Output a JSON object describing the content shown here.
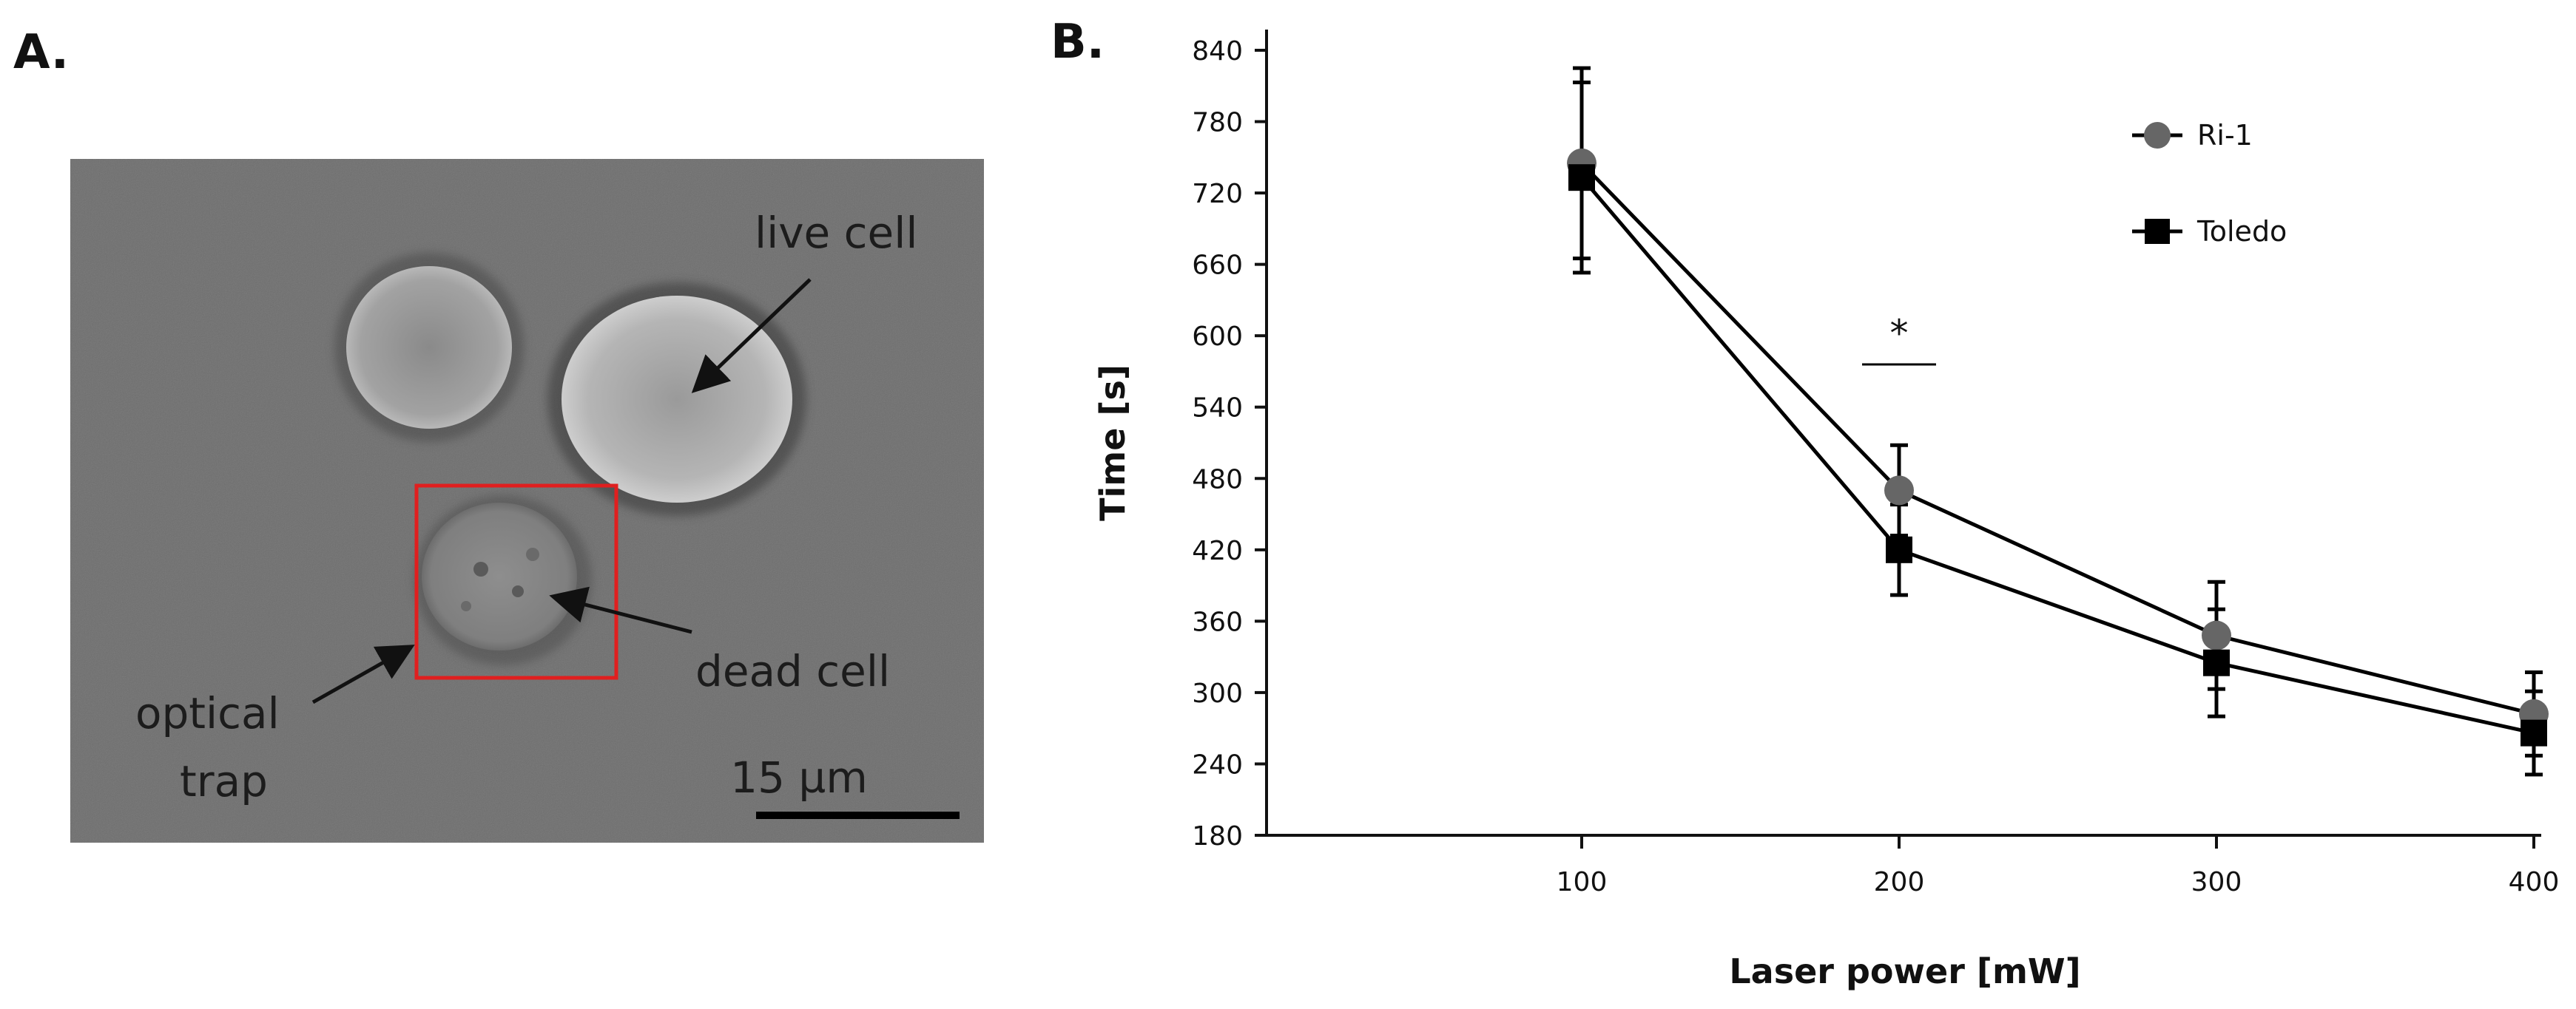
{
  "panel_a": {
    "letter": "A.",
    "labels": {
      "live_cell": "live cell",
      "dead_cell": "dead cell",
      "optical_line1": "optical",
      "optical_line2": "trap",
      "scale": "15 µm"
    },
    "colors": {
      "trap_box": "#e01f1f",
      "background": "#6e6e6e"
    }
  },
  "panel_b": {
    "letter": "B.",
    "significance": "*"
  },
  "chart_data": {
    "type": "line",
    "x": [
      100,
      200,
      300,
      400
    ],
    "xlabel": "Laser power [mW]",
    "ylabel": "Time [s]",
    "ylim": [
      180,
      840
    ],
    "yticks": [
      180,
      240,
      300,
      360,
      420,
      480,
      540,
      600,
      660,
      720,
      780,
      840
    ],
    "xticks": [
      100,
      200,
      300,
      400
    ],
    "grid": false,
    "legend": "top-right",
    "series": [
      {
        "name": "Ri-1",
        "values": [
          745,
          470,
          348,
          282
        ],
        "errors": [
          80,
          38,
          45,
          35
        ],
        "marker": "circle",
        "color": "#666666"
      },
      {
        "name": "Toledo",
        "values": [
          733,
          420,
          325,
          266
        ],
        "errors": [
          80,
          38,
          45,
          35
        ],
        "marker": "square",
        "color": "#000000"
      }
    ]
  }
}
